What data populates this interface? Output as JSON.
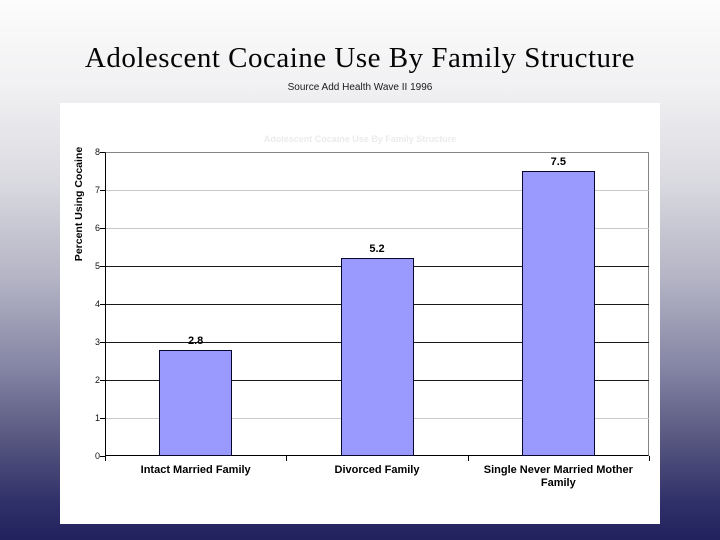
{
  "slide": {
    "title": "Adolescent Cocaine Use By Family Structure",
    "subtitle": "Source Add Health Wave II 1996"
  },
  "chart": {
    "faint_inner_title": "Adolescent Cocaine Use By Family Structure"
  },
  "chart_data": {
    "type": "bar",
    "title": "Adolescent Cocaine Use By Family Structure",
    "categories": [
      "Intact Married Family",
      "Divorced Family",
      "Single Never Married Mother Family"
    ],
    "values": [
      2.8,
      5.2,
      7.5
    ],
    "data_labels": [
      "2.8",
      "5.2",
      "7.5"
    ],
    "xlabel": "",
    "ylabel": "Percent Using Cocaine",
    "ylim": [
      0,
      8
    ],
    "yticks": [
      0,
      1,
      2,
      3,
      4,
      5,
      6,
      7,
      8
    ],
    "grid": true,
    "legend": false
  },
  "colors": {
    "bar_fill": "#9999FE",
    "bar_border": "#06062E",
    "gridline_dark": "#1a1a1a",
    "gridline_light": "#c9c9c9",
    "plot_border": "#858585",
    "background_top": "#FCFCFC",
    "background_bottom": "#21215D",
    "faint_title": "#EBEBEB"
  }
}
